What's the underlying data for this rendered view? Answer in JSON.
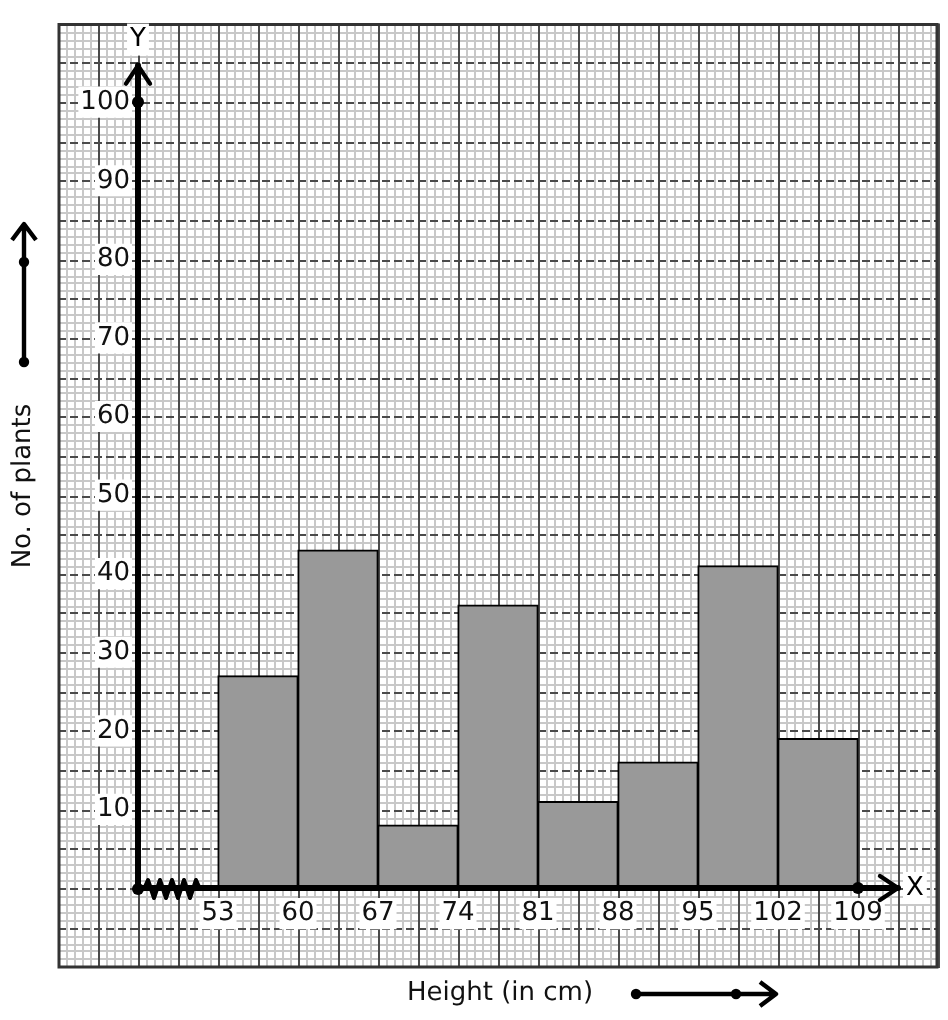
{
  "chart_data": {
    "type": "histogram",
    "xlabel": "Height (in cm)",
    "ylabel": "No. of plants",
    "annotations": [
      "X",
      "Y"
    ],
    "bins": [
      53,
      60,
      67,
      74,
      81,
      88,
      95,
      102,
      109
    ],
    "values": [
      27,
      43,
      8,
      36,
      11,
      16,
      41,
      19
    ],
    "color": "#999999",
    "xlim": [
      46,
      116
    ],
    "xticks": [
      53,
      60,
      67,
      74,
      81,
      88,
      95,
      102,
      109
    ],
    "ylim": [
      0,
      110
    ],
    "yticks": [
      10,
      20,
      30,
      40,
      50,
      60,
      70,
      80,
      90,
      100
    ],
    "grid": true
  }
}
